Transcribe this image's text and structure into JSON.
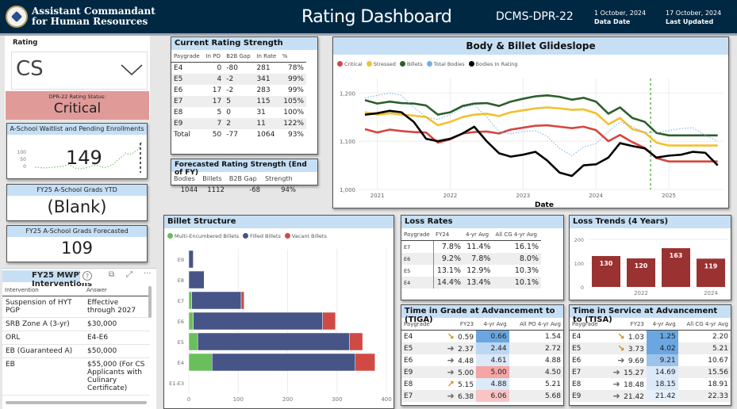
{
  "header": {
    "org_line1": "Assistant Commandant",
    "org_line2": "for Human Resources",
    "title": "Rating Dashboard",
    "code": "DCMS-DPR-22",
    "data_date": "1 October, 2024",
    "data_date_label": "Data Date",
    "last_updated": "17 October, 2024",
    "last_updated_label": "Last Updated"
  },
  "rating": {
    "label": "Rating",
    "value": "CS",
    "status_label": "DPR-22 Rating Status:",
    "status": "Critical",
    "status_color": "#e09a98"
  },
  "waitlist": {
    "title": "A-School Waitlist and Pending Enrollments",
    "value": "149",
    "axis": [
      "100",
      "50",
      "0"
    ],
    "spark": [
      18,
      16,
      15,
      15,
      17,
      18,
      20,
      22,
      30,
      22,
      12,
      10,
      14,
      18,
      24,
      26,
      20,
      16,
      22,
      30,
      48,
      62,
      80,
      72,
      82,
      96,
      128
    ]
  },
  "grads_ytd": {
    "title": "FY25 A-School Grads YTD",
    "value": "(Blank)"
  },
  "grads_forecast": {
    "title": "FY25 A-School Grads Forecasted",
    "value": "109"
  },
  "mwpt": {
    "title": "FY25 MWPT Interventions",
    "columns": [
      "Intervention",
      "Answer"
    ],
    "rows": [
      [
        "Suspension of HYT PGP",
        "Effective through 2027"
      ],
      [
        "SRB Zone A (3-yr)",
        "$30,000"
      ],
      [
        "ORL",
        "E4-E6"
      ],
      [
        "EB (Guaranteed A)",
        "$50,000"
      ],
      [
        "EB",
        "$55,000 (For CS Applicants with Culinary Certificate)"
      ]
    ],
    "toolbar": {
      "help": "?",
      "copy": "⧉",
      "expand": "⤢",
      "more": "···"
    }
  },
  "current_strength": {
    "title": "Current Rating Strength",
    "columns": [
      "Paygrade",
      "In PO",
      "B2B Gap",
      "In Rate",
      "%"
    ],
    "rows": [
      [
        "E4",
        "0",
        "-80",
        "281",
        "78%"
      ],
      [
        "E5",
        "4",
        "-2",
        "341",
        "99%"
      ],
      [
        "E6",
        "17",
        "-2",
        "283",
        "99%"
      ],
      [
        "E7",
        "17",
        "5",
        "115",
        "105%"
      ],
      [
        "E8",
        "5",
        "0",
        "31",
        "100%"
      ],
      [
        "E9",
        "7",
        "2",
        "11",
        "122%"
      ],
      [
        "Total",
        "50",
        "-77",
        "1064",
        "93%"
      ]
    ]
  },
  "forecast_strength": {
    "title": "Forecasted Rating Strength (End of FY)",
    "columns": [
      "Bodies",
      "Billets",
      "B2B Gap",
      "Strength"
    ],
    "row": [
      "1044",
      "1112",
      "-68",
      "94%"
    ]
  },
  "loss_rates": {
    "title": "Loss Rates",
    "columns": [
      "Paygrade",
      "FY24",
      "4-yr Avg",
      "All CG 4-yr Avg"
    ],
    "rows": [
      [
        "E7",
        "7.8%",
        "11.4%",
        "16.1%"
      ],
      [
        "E6",
        "9.2%",
        "7.8%",
        "8.0%"
      ],
      [
        "E5",
        "13.1%",
        "12.9%",
        "10.3%"
      ],
      [
        "E4",
        "14.4%",
        "13.4%",
        "10.1%"
      ]
    ]
  },
  "tiga": {
    "title": "Time in Grade at Advancement to (TIGA)",
    "columns": [
      "Paygrade",
      "FY23",
      "4-yr Avg",
      "All PO 4-yr Avg"
    ],
    "rows": [
      {
        "pg": "E4",
        "trend": "down",
        "fy": "0.59",
        "avg": "0.66",
        "all": "1.54",
        "bg": "#6aa7e0"
      },
      {
        "pg": "E5",
        "trend": "flat",
        "fy": "2.37",
        "avg": "2.44",
        "all": "2.72",
        "bg": "#bcd7f2"
      },
      {
        "pg": "E6",
        "trend": "flat",
        "fy": "4.48",
        "avg": "4.61",
        "all": "4.88",
        "bg": "#dbe9f8"
      },
      {
        "pg": "E9",
        "trend": "flat",
        "fy": "5.00",
        "avg": "5.00",
        "all": "4.50",
        "bg": "#f5a5a5"
      },
      {
        "pg": "E8",
        "trend": "up",
        "fy": "5.15",
        "avg": "4.88",
        "all": "5.21",
        "bg": "#dbe9f8"
      },
      {
        "pg": "E7",
        "trend": "flat",
        "fy": "6.38",
        "avg": "6.06",
        "all": "5.68",
        "bg": "#f8c4c4"
      }
    ]
  },
  "tisa": {
    "title": "Time in Service at Advancement to (TISA)",
    "columns": [
      "Paygrade",
      "FY23",
      "4-yr Avg",
      "All CG 4-yr Avg"
    ],
    "rows": [
      {
        "pg": "E4",
        "trend": "down",
        "fy": "1.03",
        "avg": "1.25",
        "all": "2.20",
        "bg": "#6aa7e0"
      },
      {
        "pg": "E5",
        "trend": "down",
        "fy": "3.73",
        "avg": "4.02",
        "all": "5.21",
        "bg": "#6aa7e0"
      },
      {
        "pg": "E6",
        "trend": "flat",
        "fy": "9.69",
        "avg": "9.21",
        "all": "10.67",
        "bg": "#9cc3ec"
      },
      {
        "pg": "E7",
        "trend": "flat",
        "fy": "15.27",
        "avg": "14.69",
        "all": "15.56",
        "bg": "#dbe9f8"
      },
      {
        "pg": "E8",
        "trend": "flat",
        "fy": "18.48",
        "avg": "18.15",
        "all": "18.91",
        "bg": "#dbe9f8"
      },
      {
        "pg": "E9",
        "trend": "flat",
        "fy": "21.42",
        "avg": "21.42",
        "all": "22.33",
        "bg": "#e6f0fa"
      }
    ]
  },
  "chart_data": [
    {
      "type": "line",
      "title": "Body & Billet Glideslope",
      "xlabel": "Date",
      "ylabel": "",
      "x_ticks": [
        "2021",
        "2022",
        "2023",
        "2024",
        "2025"
      ],
      "x_range": [
        2020.83,
        2025.75
      ],
      "ylim": [
        1000,
        1230
      ],
      "y_ticks": [
        1000,
        1100,
        1200
      ],
      "y_tick_labels": [
        "1,000",
        "1,100",
        "1,200"
      ],
      "marker_line_x": 2024.75,
      "legend_position": "top-left",
      "x": [
        2020.83,
        2021.0,
        2021.17,
        2021.33,
        2021.5,
        2021.67,
        2021.83,
        2022.0,
        2022.17,
        2022.33,
        2022.5,
        2022.67,
        2022.83,
        2023.0,
        2023.17,
        2023.33,
        2023.5,
        2023.67,
        2023.83,
        2024.0,
        2024.17,
        2024.33,
        2024.5,
        2024.67,
        2024.83,
        2025.0,
        2025.17,
        2025.33,
        2025.5,
        2025.67
      ],
      "series": [
        {
          "name": "Critical",
          "color": "#d64541",
          "style": "solid",
          "values": [
            1125,
            1118,
            1124,
            1121,
            1119,
            1118,
            1097,
            1104,
            1116,
            1119,
            1120,
            1116,
            1124,
            1128,
            1132,
            1133,
            1130,
            1127,
            1130,
            1123,
            1100,
            1113,
            1098,
            1086,
            1065,
            1058,
            1058,
            1058,
            1058,
            1058
          ]
        },
        {
          "name": "Stressed",
          "color": "#f2c12e",
          "style": "solid",
          "values": [
            1160,
            1155,
            1158,
            1155,
            1153,
            1150,
            1133,
            1140,
            1150,
            1155,
            1157,
            1152,
            1160,
            1164,
            1168,
            1170,
            1168,
            1165,
            1166,
            1158,
            1135,
            1148,
            1125,
            1118,
            1097,
            1091,
            1091,
            1091,
            1091,
            1091
          ]
        },
        {
          "name": "Billets",
          "color": "#2e5e2b",
          "style": "solid",
          "values": [
            1185,
            1178,
            1182,
            1179,
            1178,
            1174,
            1155,
            1160,
            1173,
            1178,
            1179,
            1173,
            1182,
            1188,
            1193,
            1195,
            1192,
            1186,
            1190,
            1182,
            1157,
            1170,
            1148,
            1140,
            1117,
            1112,
            1112,
            1112,
            1112,
            1112
          ]
        },
        {
          "name": "Total Bodies",
          "color": "#6fb0e8",
          "style": "dotted",
          "values": [
            1190,
            1195,
            1200,
            1195,
            1170,
            1150,
            1145,
            1155,
            1170,
            1175,
            1150,
            1120,
            1115,
            1120,
            1122,
            1110,
            1085,
            1070,
            1088,
            1095,
            1120,
            1140,
            1130,
            1118,
            1118,
            1122,
            1126,
            1128,
            1112,
            1100
          ]
        },
        {
          "name": "Bodies In Rating",
          "color": "#000000",
          "style": "solid",
          "values": [
            1155,
            1158,
            1163,
            1160,
            1140,
            1105,
            1100,
            1105,
            1116,
            1130,
            1100,
            1075,
            1068,
            1072,
            1078,
            1060,
            1035,
            1028,
            1050,
            1052,
            1066,
            1096,
            1090,
            1085,
            1066,
            1070,
            1072,
            1078,
            1076,
            1050
          ]
        }
      ]
    },
    {
      "type": "bar",
      "title": "Billet Structure",
      "orientation": "horizontal",
      "stacked": true,
      "legend_position": "top-left",
      "categories": [
        "E9",
        "E8",
        "E7",
        "E6",
        "E5",
        "E4",
        "E1-E3"
      ],
      "xlim": [
        0,
        400
      ],
      "x_ticks": [
        0,
        100,
        200,
        300,
        400
      ],
      "series": [
        {
          "name": "Multi-Encumbered Billets",
          "color": "#6abe5b",
          "values": [
            0,
            0,
            6,
            9,
            18,
            47,
            0
          ]
        },
        {
          "name": "Filled Billets",
          "color": "#465487",
          "values": [
            9,
            31,
            100,
            262,
            307,
            290,
            0
          ]
        },
        {
          "name": "Vacant Billets",
          "color": "#d04a45",
          "values": [
            0,
            0,
            6,
            26,
            27,
            40,
            0
          ]
        }
      ]
    },
    {
      "type": "bar",
      "title": "Loss Trends (4 Years)",
      "categories": [
        "2021",
        "2022",
        "2023",
        "2024"
      ],
      "x_tick_labels": [
        "",
        "2022",
        "",
        "2024"
      ],
      "values": [
        130,
        120,
        163,
        119
      ],
      "ylim": [
        0,
        200
      ],
      "y_ticks": [
        0,
        100,
        200
      ],
      "color": "#9a3232"
    }
  ]
}
